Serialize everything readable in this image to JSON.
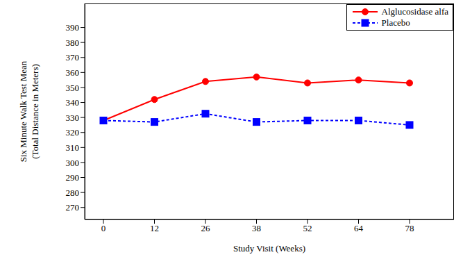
{
  "chart_data": {
    "type": "line",
    "xlabel": "Study Visit (Weeks)",
    "ylabel": [
      "Six Minute Walk Test Mean",
      "(Total Distance in Meters)"
    ],
    "categories": [
      "0",
      "12",
      "26",
      "38",
      "52",
      "64",
      "78"
    ],
    "series": [
      {
        "name": "Alglucosidase alfa",
        "color": "#ff0000",
        "marker": "circle",
        "line_style": "solid",
        "values": [
          328,
          342,
          354,
          357,
          353,
          355,
          353
        ]
      },
      {
        "name": "Placebo",
        "color": "#0000ff",
        "marker": "square",
        "line_style": "dashed",
        "values": [
          328,
          327,
          332.5,
          327,
          328,
          328,
          325
        ]
      }
    ],
    "ylim": [
      262,
      406
    ],
    "yticks": [
      270,
      280,
      290,
      300,
      310,
      320,
      330,
      340,
      350,
      360,
      370,
      380,
      390
    ],
    "legend": "upper right",
    "grid": false
  }
}
